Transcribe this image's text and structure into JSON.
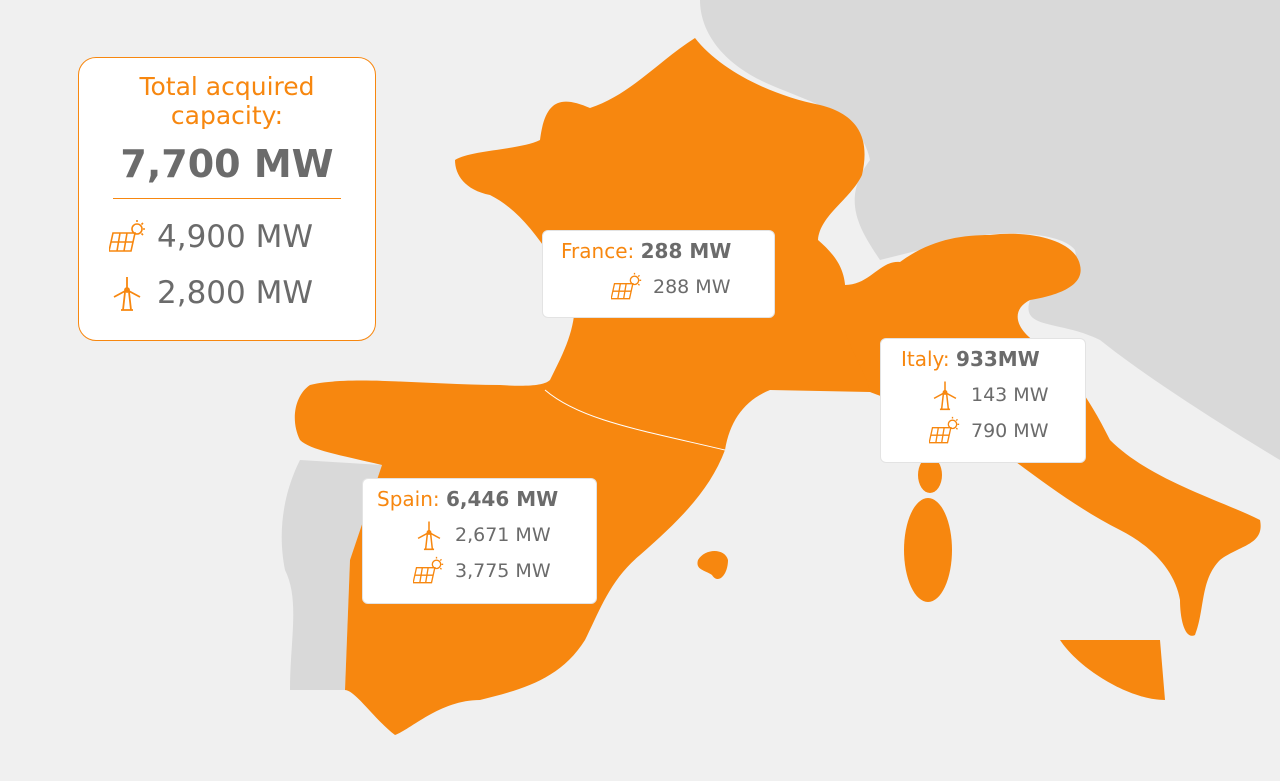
{
  "summary": {
    "title": "Total acquired capacity:",
    "total": "7,700 MW",
    "solar": "4,900 MW",
    "wind": "2,800 MW"
  },
  "countries": [
    {
      "name": "France:",
      "total": "288 MW",
      "solar": "288 MW"
    },
    {
      "name": "Italy:",
      "total": "933MW",
      "wind": "143 MW",
      "solar": "790 MW"
    },
    {
      "name": "Spain:",
      "total": "6,446 MW",
      "wind": "2,671 MW",
      "solar": "3,775 MW"
    }
  ]
}
